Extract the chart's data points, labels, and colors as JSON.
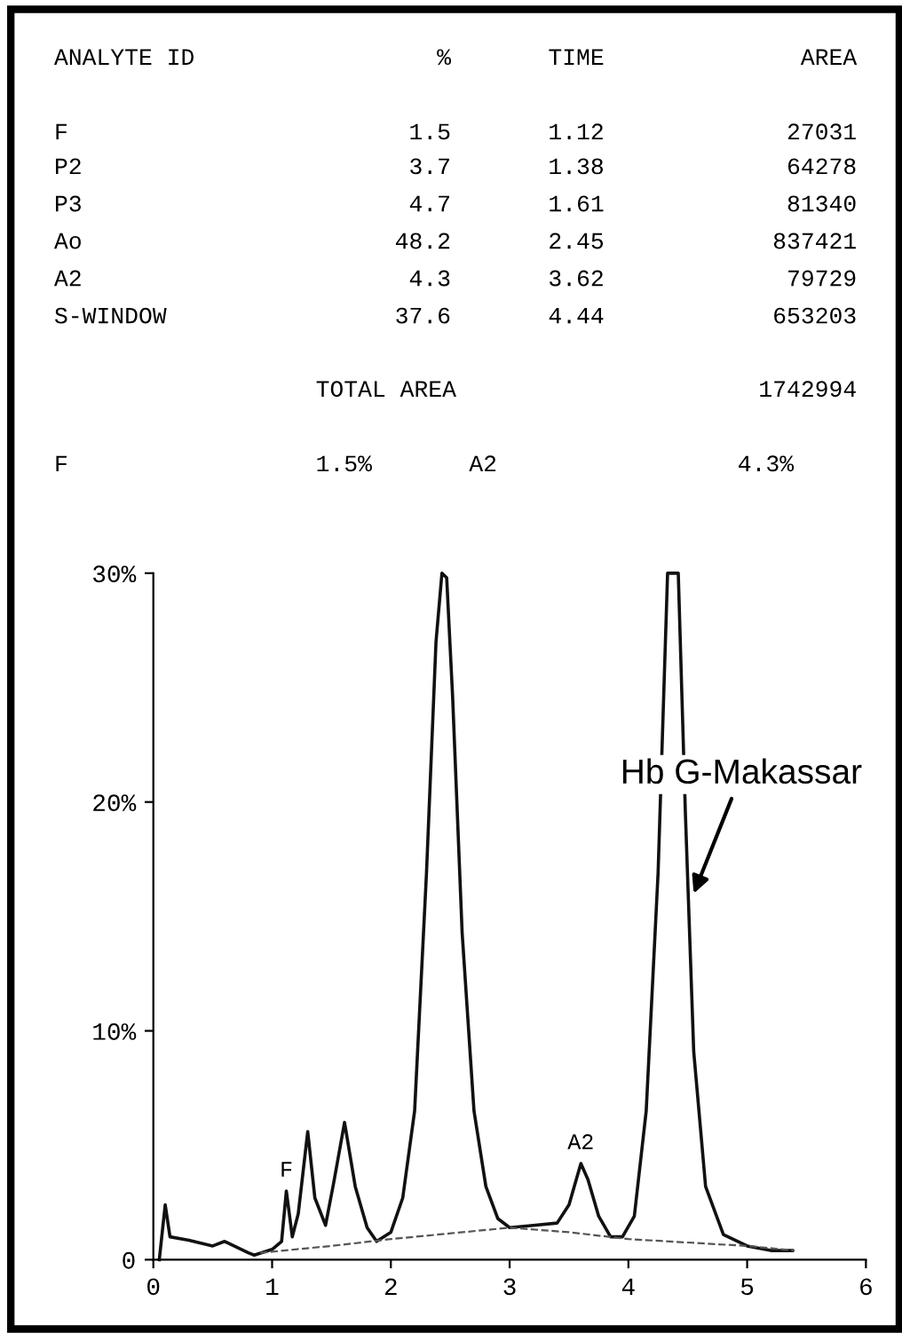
{
  "chart_data": {
    "type": "line",
    "xlim": [
      0,
      6
    ],
    "ylim": [
      0,
      30
    ],
    "xticks": [
      0,
      1,
      2,
      3,
      4,
      5,
      6
    ],
    "yticks": [
      0,
      {
        "value": 10,
        "label": "10%"
      },
      {
        "value": 20,
        "label": "20%"
      },
      {
        "value": 30,
        "label": "30%"
      }
    ],
    "grid": false,
    "legend": false,
    "marker": "none",
    "series": [
      {
        "color": "#111111",
        "line_style": "solid",
        "x": [
          0.05,
          0.1,
          0.14,
          0.3,
          0.5,
          0.6,
          0.8,
          0.85,
          1.0,
          1.08,
          1.12,
          1.17,
          1.22,
          1.3,
          1.36,
          1.45,
          1.52,
          1.61,
          1.7,
          1.8,
          1.88,
          2.0,
          2.1,
          2.2,
          2.3,
          2.38,
          2.43,
          2.47,
          2.52,
          2.6,
          2.7,
          2.8,
          2.9,
          3.0,
          3.2,
          3.4,
          3.5,
          3.6,
          3.66,
          3.75,
          3.85,
          3.95,
          4.05,
          4.15,
          4.25,
          4.33,
          4.42,
          4.48,
          4.55,
          4.65,
          4.8,
          5.0,
          5.2,
          5.38
        ],
        "values": [
          0,
          2.4,
          1.0,
          0.85,
          0.6,
          0.8,
          0.3,
          0.2,
          0.45,
          0.8,
          3.0,
          1.0,
          2.0,
          5.6,
          2.7,
          1.5,
          3.4,
          6.0,
          3.2,
          1.4,
          0.8,
          1.2,
          2.7,
          6.5,
          16.9,
          27,
          30,
          29.8,
          24.6,
          14.3,
          6.5,
          3.2,
          1.8,
          1.4,
          1.5,
          1.6,
          2.4,
          4.2,
          3.5,
          1.9,
          1.0,
          1.0,
          1.9,
          6.5,
          16.9,
          30,
          30,
          19.5,
          9.1,
          3.2,
          1.1,
          0.6,
          0.4,
          0.4
        ]
      },
      {
        "color": "#555555",
        "line_style": "dashed",
        "x": [
          0.9,
          1.5,
          2.0,
          3.0,
          3.5,
          4.0,
          5.0,
          5.4
        ],
        "values": [
          0.3,
          0.6,
          0.9,
          1.4,
          1.2,
          0.9,
          0.6,
          0.4
        ]
      }
    ],
    "annotations": [
      "ANALYTE ID",
      "%",
      "TIME",
      "AREA",
      "F",
      "1.5",
      "1.12",
      "27031",
      "P2",
      "3.7",
      "1.38",
      "64278",
      "P3",
      "4.7",
      "1.61",
      "81340",
      "Ao",
      "48.2",
      "2.45",
      "837421",
      "A2",
      "4.3",
      "3.62",
      "79729",
      "S-WINDOW",
      "37.6",
      "4.44",
      "653203",
      "TOTAL AREA",
      "1742994",
      "F",
      "1.5%",
      "A2",
      "4.3%",
      {
        "text": "F",
        "x": 1.12,
        "y": 3.0
      },
      {
        "text": "A2",
        "x": 3.6,
        "y": 4.2
      },
      {
        "text": "Hb G-Makassar",
        "x": 4.55,
        "y": 16
      }
    ]
  }
}
